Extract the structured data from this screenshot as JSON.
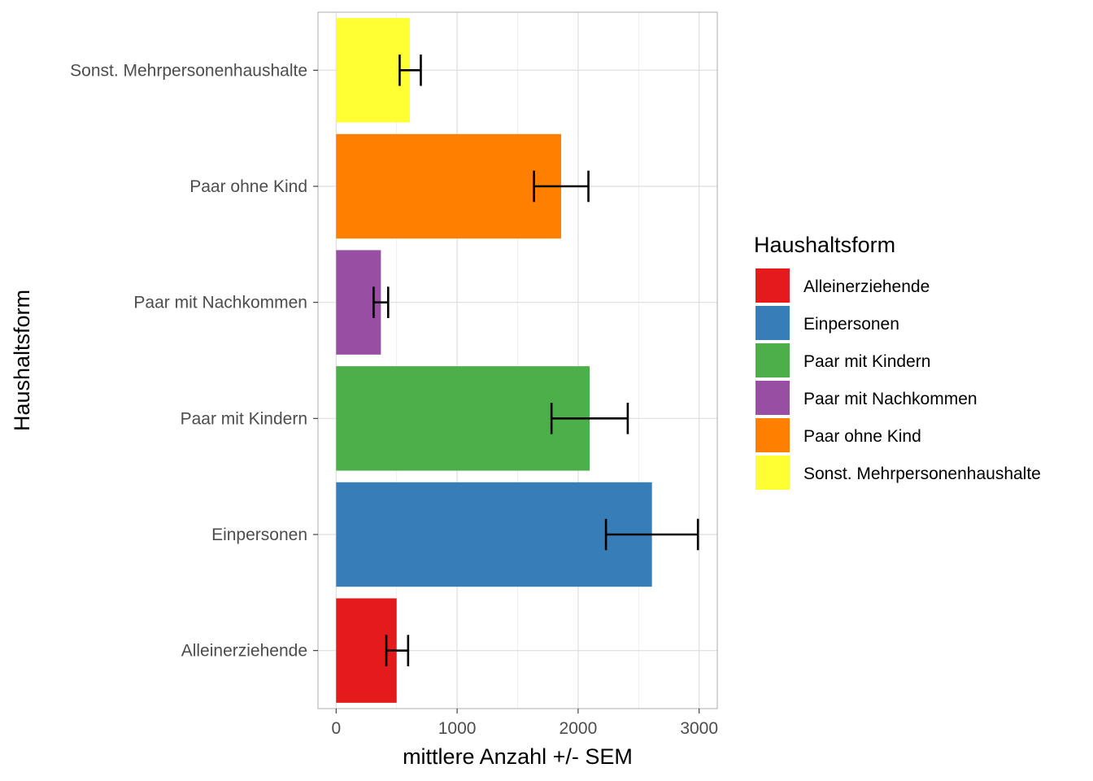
{
  "chart_data": {
    "type": "bar",
    "orientation": "horizontal",
    "categories": [
      "Alleinerziehende",
      "Einpersonen",
      "Paar mit Kindern",
      "Paar mit Nachkommen",
      "Paar ohne Kind",
      "Sonst. Mehrpersonenhaushalte"
    ],
    "values": [
      500,
      2610,
      2095,
      370,
      1860,
      610
    ],
    "error_low": [
      415,
      2230,
      1780,
      310,
      1635,
      525
    ],
    "error_high": [
      595,
      2990,
      2410,
      430,
      2085,
      700
    ],
    "colors": [
      "#E41A1C",
      "#377EB8",
      "#4DAF4A",
      "#984EA3",
      "#FF7F00",
      "#FFFF33"
    ],
    "xlabel": "mittlere Anzahl +/- SEM",
    "ylabel": "Haushaltsform",
    "xlim": [
      -150,
      3150
    ],
    "x_ticks": [
      0,
      1000,
      2000,
      3000
    ],
    "x_tick_labels": [
      "0",
      "1000",
      "2000",
      "3000"
    ],
    "grid": true,
    "legend": {
      "title": "Haushaltsform",
      "position": "right",
      "entries": [
        "Alleinerziehende",
        "Einpersonen",
        "Paar mit Kindern",
        "Paar mit Nachkommen",
        "Paar ohne Kind",
        "Sonst. Mehrpersonenhaushalte"
      ]
    }
  }
}
